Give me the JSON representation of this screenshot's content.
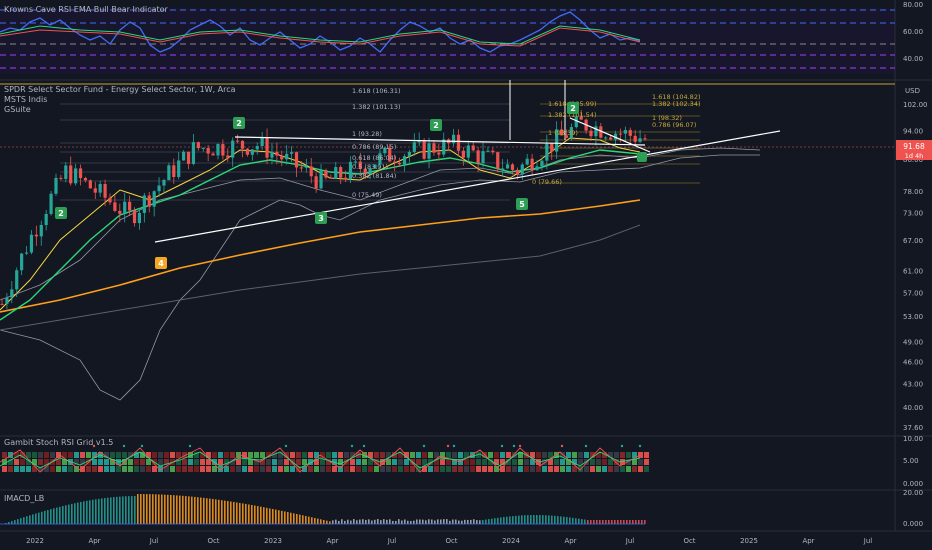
{
  "panes": {
    "rsi": {
      "title": "Krowns Cave RSI EMA Bull Bear Indicator",
      "ticks": [
        "80.00",
        "60.00",
        "40.00"
      ]
    },
    "main": {
      "title_lines": [
        "SPDR Select Sector Fund - Energy Select Sector, 1W, Arca",
        "MSTS Indis",
        "GSuite"
      ],
      "currency": "USD",
      "price_label": "91.68",
      "price_sub": "1d 4h",
      "ticks": [
        "102.00",
        "94.00",
        "86.00",
        "78.00",
        "73.00",
        "67.00",
        "61.00",
        "57.00",
        "53.00",
        "49.00",
        "46.00",
        "43.00",
        "40.00",
        "37.60"
      ]
    },
    "stoch": {
      "title": "Gambit Stoch RSI Grid v1.5",
      "ticks": [
        "10.00",
        "5.00",
        "0.000"
      ]
    },
    "macd": {
      "title": "IMACD_LB",
      "ticks": [
        "20.00",
        "0.000"
      ]
    }
  },
  "time_axis": [
    "2022",
    "Apr",
    "Jul",
    "Oct",
    "2023",
    "Apr",
    "Jul",
    "Oct",
    "2024",
    "Apr",
    "Jul",
    "Oct",
    "2025",
    "Apr",
    "Jul"
  ],
  "fib_labels": [
    "1.618 (106.31)",
    "1.382 (101.13)",
    "1 (93.28)",
    "0.786 (89.15)",
    "0.618 (86.04)",
    "0.5 (83.91)",
    "0.382 (81.84)",
    "0 (75.49)",
    "1.618 (105.99)",
    "1.382 (101.54)",
    "1 (93.39)",
    "0 (79.66)",
    "1.618 (104.82)",
    "1.382 (102.34)",
    "1 (98.32)",
    "0.786 (96.07)"
  ],
  "wave_labels": [
    "2",
    "4",
    "2",
    "3",
    "2",
    "5",
    "2",
    "2"
  ],
  "chart_data": {
    "type": "line",
    "x": [
      "2022-01",
      "2022-04",
      "2022-07",
      "2022-10",
      "2023-01",
      "2023-04",
      "2023-07",
      "2023-10",
      "2024-01",
      "2024-04",
      "2024-07"
    ],
    "series": [
      {
        "name": "price",
        "values": [
          55,
          83,
          72,
          89,
          90,
          80,
          87,
          90,
          83,
          96,
          91.68
        ]
      }
    ],
    "ylim": [
      37.6,
      110
    ],
    "colors": {
      "up": "#26a69a",
      "down": "#ef5350",
      "ema_fast": "#f5d742",
      "ema_mid": "#2bd97a",
      "ema_slow": "#ff9f1a",
      "ema_long": "#787b86",
      "rsi": "#3f6df5"
    }
  }
}
